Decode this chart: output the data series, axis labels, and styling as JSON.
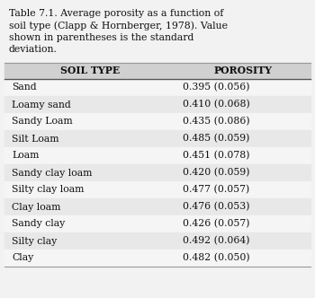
{
  "title_line1": "Table 7.1. Average porosity as a function of",
  "title_line2": "soil type (Clapp & Hornberger, 1978). Value",
  "title_line3": "shown in parentheses is the standard",
  "title_line4": "deviation.",
  "col1_header": "Soil Type",
  "col2_header": "Porosity",
  "rows": [
    [
      "Sand",
      "0.395 (0.056)"
    ],
    [
      "Loamy sand",
      "0.410 (0.068)"
    ],
    [
      "Sandy Loam",
      "0.435 (0.086)"
    ],
    [
      "Silt Loam",
      "0.485 (0.059)"
    ],
    [
      "Loam",
      "0.451 (0.078)"
    ],
    [
      "Sandy clay loam",
      "0.420 (0.059)"
    ],
    [
      "Silty clay loam",
      "0.477 (0.057)"
    ],
    [
      "Clay loam",
      "0.476 (0.053)"
    ],
    [
      "Sandy clay",
      "0.426 (0.057)"
    ],
    [
      "Silty clay",
      "0.492 (0.064)"
    ],
    [
      "Clay",
      "0.482 (0.050)"
    ]
  ],
  "fig_bg": "#f2f2f2",
  "row_even_color": "#e8e8e8",
  "row_odd_color": "#f5f5f5",
  "header_bg": "#d0d0d0",
  "title_fontsize": 7.8,
  "header_fontsize": 7.8,
  "row_fontsize": 7.8,
  "line_color": "#999999",
  "text_color": "#111111"
}
